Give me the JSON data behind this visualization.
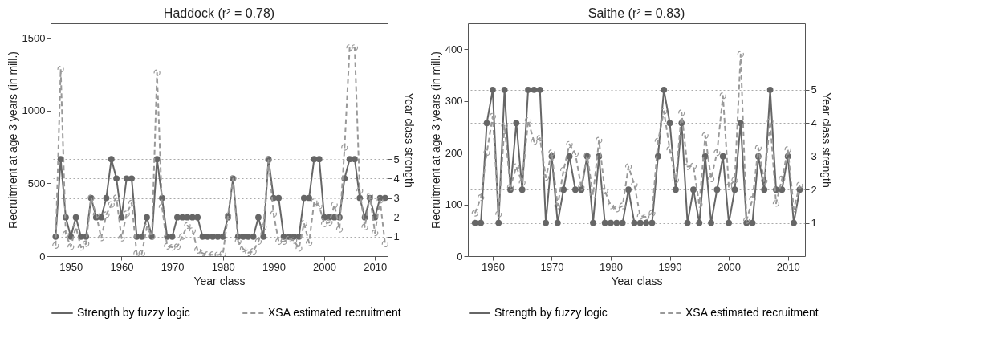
{
  "chart_data": [
    {
      "type": "line",
      "title": "Haddock  (r² =  0.78)",
      "xlabel": "Year class",
      "ylabel": "Recruitment at age 3 years (in mill.)",
      "y2label": "Year class strength",
      "xlim": [
        1946,
        2012.5
      ],
      "xticks": [
        1950,
        1960,
        1970,
        1980,
        1990,
        2000,
        2010
      ],
      "ylim": [
        0,
        1600
      ],
      "yticks": [
        0,
        500,
        1000,
        1500
      ],
      "y2lim": [
        0,
        12
      ],
      "y2ticks": [
        1,
        2,
        3,
        4,
        5
      ],
      "grid": "y2",
      "legend": "bottom",
      "marker": "circle",
      "x": [
        1947,
        1948,
        1949,
        1950,
        1951,
        1952,
        1953,
        1954,
        1955,
        1956,
        1957,
        1958,
        1959,
        1960,
        1961,
        1962,
        1963,
        1964,
        1965,
        1966,
        1967,
        1968,
        1969,
        1970,
        1971,
        1972,
        1973,
        1974,
        1975,
        1976,
        1977,
        1978,
        1979,
        1980,
        1981,
        1982,
        1983,
        1984,
        1985,
        1986,
        1987,
        1988,
        1989,
        1990,
        1991,
        1992,
        1993,
        1994,
        1995,
        1996,
        1997,
        1998,
        1999,
        2000,
        2001,
        2002,
        2003,
        2004,
        2005,
        2006,
        2007,
        2008,
        2009,
        2010,
        2011,
        2012
      ],
      "series": [
        {
          "name": "Strength by fuzzy logic",
          "color": "#666666",
          "axis": "y2",
          "line_style": "solid",
          "values": [
            1,
            5,
            2,
            1,
            2,
            1,
            1,
            3,
            2,
            2,
            3,
            5,
            4,
            2,
            4,
            4,
            1,
            1,
            2,
            1,
            5,
            3,
            1,
            1,
            2,
            2,
            2,
            2,
            2,
            1,
            1,
            1,
            1,
            1,
            2,
            4,
            1,
            1,
            1,
            1,
            2,
            1,
            5,
            3,
            3,
            1,
            1,
            1,
            1,
            3,
            3,
            5,
            5,
            2,
            2,
            2,
            2,
            4,
            5,
            5,
            3,
            2,
            3,
            2,
            3,
            3
          ]
        },
        {
          "name": "XSA estimated recruitment",
          "color": "#999999",
          "line_style": "dashed",
          "values": [
            73,
            1285,
            150,
            64,
            200,
            60,
            85,
            400,
            285,
            125,
            285,
            355,
            400,
            123,
            290,
            365,
            17,
            17,
            200,
            135,
            1260,
            337,
            67,
            60,
            64,
            135,
            210,
            175,
            40,
            20,
            10,
            10,
            8,
            15,
            277,
            533,
            100,
            49,
            23,
            32,
            100,
            200,
            660,
            290,
            100,
            100,
            116,
            107,
            53,
            226,
            91,
            373,
            345,
            221,
            232,
            353,
            184,
            747,
            1433,
            1433,
            450,
            200,
            413,
            159,
            384,
            83
          ]
        }
      ]
    },
    {
      "type": "line",
      "title": "Saithe  (r² =  0.83)",
      "xlabel": "Year class",
      "ylabel": "Recruitment at age 3 years (in mill.)",
      "y2label": "Year class strength",
      "xlim": [
        1955.8,
        2012.9
      ],
      "xticks": [
        1960,
        1970,
        1980,
        1990,
        2000,
        2010
      ],
      "ylim": [
        0,
        450
      ],
      "yticks": [
        0,
        100,
        200,
        300,
        400
      ],
      "y2lim": [
        0,
        7
      ],
      "y2ticks": [
        1,
        2,
        3,
        4,
        5
      ],
      "grid": "y2",
      "legend": "bottom",
      "marker": "circle",
      "x": [
        1957,
        1958,
        1959,
        1960,
        1961,
        1962,
        1963,
        1964,
        1965,
        1966,
        1967,
        1968,
        1969,
        1970,
        1971,
        1972,
        1973,
        1974,
        1975,
        1976,
        1977,
        1978,
        1979,
        1980,
        1981,
        1982,
        1983,
        1984,
        1985,
        1986,
        1987,
        1988,
        1989,
        1990,
        1991,
        1992,
        1993,
        1994,
        1995,
        1996,
        1997,
        1998,
        1999,
        2000,
        2001,
        2002,
        2003,
        2004,
        2005,
        2006,
        2007,
        2008,
        2009,
        2010,
        2011,
        2012
      ],
      "series": [
        {
          "name": "Strength by fuzzy logic",
          "color": "#666666",
          "axis": "y2",
          "line_style": "solid",
          "values": [
            1,
            1,
            4,
            5,
            1,
            5,
            2,
            4,
            2,
            5,
            5,
            5,
            1,
            3,
            1,
            2,
            3,
            2,
            2,
            3,
            1,
            3,
            1,
            1,
            1,
            1,
            2,
            1,
            1,
            1,
            1,
            3,
            5,
            4,
            2,
            4,
            1,
            2,
            1,
            3,
            1,
            2,
            3,
            1,
            2,
            4,
            1,
            1,
            3,
            2,
            5,
            2,
            2,
            3,
            1,
            2
          ]
        },
        {
          "name": "XSA estimated recruitment",
          "color": "#999999",
          "line_style": "dashed",
          "values": [
            83,
            113,
            200,
            270,
            81,
            252,
            133,
            173,
            142,
            262,
            221,
            228,
            152,
            200,
            97,
            166,
            216,
            198,
            133,
            194,
            118,
            224,
            126,
            97,
            91,
            97,
            173,
            138,
            77,
            76,
            83,
            222,
            280,
            206,
            147,
            277,
            173,
            174,
            100,
            233,
            149,
            200,
            310,
            134,
            147,
            390,
            69,
            110,
            209,
            145,
            260,
            102,
            149,
            206,
            91,
            137
          ]
        }
      ]
    }
  ]
}
